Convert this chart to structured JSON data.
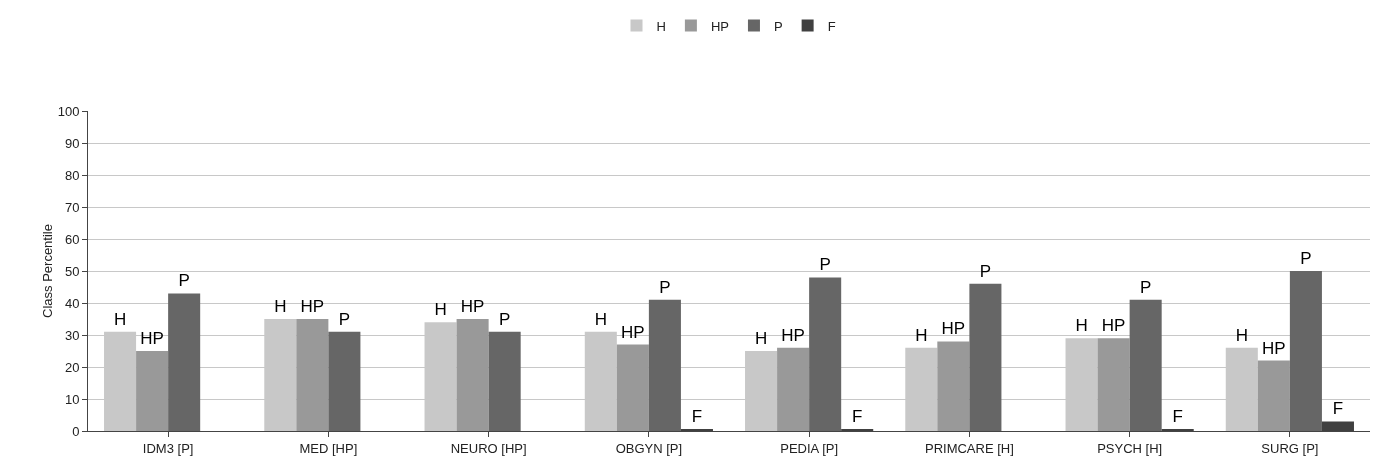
{
  "chart_data": {
    "type": "bar",
    "ylabel": "Class Percentile",
    "categories": [
      "IDM3 [P]",
      "MED [HP]",
      "NEURO [HP]",
      "OBGYN [P]",
      "PEDIA [P]",
      "PRIMCARE [H]",
      "PSYCH [H]",
      "SURG [P]"
    ],
    "series": [
      {
        "name": "H",
        "color": "#c8c8c8",
        "values": [
          31,
          35,
          34,
          31,
          25,
          26,
          29,
          26
        ],
        "value_labels": [
          "H",
          "H",
          "H",
          "H",
          "H",
          "H",
          "H",
          "H"
        ]
      },
      {
        "name": "HP",
        "color": "#999999",
        "values": [
          25,
          35,
          35,
          27,
          26,
          28,
          29,
          22
        ],
        "value_labels": [
          "HP",
          "HP",
          "HP",
          "HP",
          "HP",
          "HP",
          "HP",
          "HP"
        ]
      },
      {
        "name": "P",
        "color": "#666666",
        "values": [
          43,
          31,
          31,
          41,
          48,
          46,
          41,
          50
        ],
        "value_labels": [
          "P",
          "P",
          "P",
          "P",
          "P",
          "P",
          "P",
          "P"
        ]
      },
      {
        "name": "F",
        "color": "#404040",
        "values": [
          null,
          null,
          null,
          0.5,
          0.5,
          null,
          0.5,
          3
        ],
        "value_labels": [
          null,
          null,
          null,
          "F",
          "F",
          null,
          "F",
          "F"
        ]
      }
    ],
    "ylim": [
      0,
      100
    ],
    "yticks": [
      0,
      10,
      20,
      30,
      40,
      50,
      60,
      70,
      80,
      90,
      100
    ],
    "grid": "y",
    "legend": "top"
  }
}
